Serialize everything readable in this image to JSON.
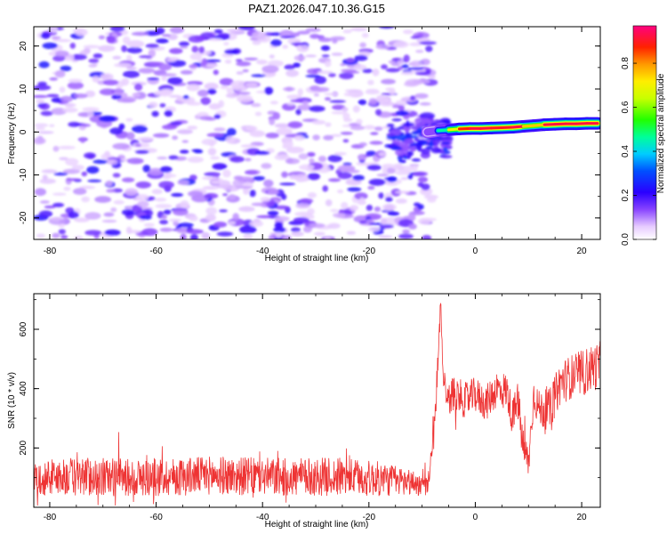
{
  "title": "PAZ1.2026.047.10.36.G15",
  "chart_data": [
    {
      "type": "heatmap",
      "name": "spectrogram",
      "xlabel": "Height of straight line (km)",
      "ylabel": "Frequency (Hz)",
      "xlim": [
        -83,
        23.5
      ],
      "ylim": [
        -25,
        24.5
      ],
      "xticks": [
        -80,
        -60,
        -40,
        -20,
        0,
        20
      ],
      "yticks": [
        -20,
        -10,
        0,
        10,
        20
      ],
      "xtick_labels": [
        "-80",
        "-60",
        "-40",
        "-20",
        "0",
        "20"
      ],
      "ytick_labels": [
        "-20",
        "-10",
        "0",
        "10",
        "20"
      ],
      "noise_band": {
        "x_range": [
          -82,
          -8
        ],
        "amplitude_range": [
          0.05,
          0.25
        ]
      },
      "signal_track": {
        "x": [
          -9,
          -7,
          -5,
          -3,
          -1,
          1,
          3,
          5,
          7,
          9,
          11,
          13,
          15,
          17,
          19,
          21,
          23
        ],
        "frequency": [
          0.0,
          0.3,
          0.5,
          0.7,
          0.8,
          0.8,
          0.9,
          1.0,
          1.1,
          1.3,
          1.5,
          1.7,
          1.8,
          1.9,
          1.9,
          2.0,
          2.0
        ],
        "amplitude": [
          0.2,
          0.35,
          0.6,
          0.85,
          0.95,
          0.95,
          0.95,
          0.9,
          0.95,
          0.95,
          0.6,
          0.95,
          0.95,
          0.95,
          0.95,
          0.95,
          0.95
        ]
      },
      "colorbar": {
        "label": "Normalized spectral amplitude",
        "ticks": [
          0.0,
          0.2,
          0.4,
          0.6,
          0.8
        ],
        "tick_labels": [
          "0.0",
          "0.2",
          "0.4",
          "0.6",
          "0.8"
        ],
        "range": [
          0.0,
          0.97
        ]
      }
    },
    {
      "type": "line",
      "name": "snr",
      "xlabel": "Height of straight line (km)",
      "ylabel": "SNR (10 * v/v)",
      "xlim": [
        -83,
        23.5
      ],
      "ylim": [
        0,
        720
      ],
      "xticks": [
        -80,
        -60,
        -40,
        -20,
        0,
        20
      ],
      "yticks": [
        200,
        400,
        600
      ],
      "xtick_labels": [
        "-80",
        "-60",
        "-40",
        "-20",
        "0",
        "20"
      ],
      "ytick_labels": [
        "200",
        "400",
        "600"
      ],
      "series": [
        {
          "name": "SNR",
          "color": "#ee3333",
          "x": [
            -82,
            -74,
            -66,
            -58,
            -50,
            -42,
            -34,
            -26,
            -18,
            -12,
            -9,
            -8,
            -7,
            -6.5,
            -6,
            -5,
            -4,
            -2,
            0,
            2,
            4,
            6,
            7,
            8,
            9,
            10,
            11,
            12,
            14,
            16,
            18,
            20,
            22,
            23.5
          ],
          "y": [
            100,
            105,
            100,
            102,
            108,
            104,
            100,
            104,
            95,
            85,
            70,
            190,
            480,
            700,
            430,
            360,
            390,
            360,
            380,
            350,
            400,
            390,
            300,
            360,
            200,
            150,
            380,
            330,
            330,
            420,
            440,
            450,
            470,
            480
          ],
          "noise_amplitude": [
            60,
            65,
            65,
            65,
            65,
            65,
            65,
            65,
            60,
            45,
            30,
            50,
            60,
            30,
            50,
            55,
            60,
            60,
            60,
            60,
            65,
            65,
            60,
            70,
            70,
            60,
            60,
            65,
            70,
            75,
            75,
            80,
            80,
            80
          ]
        }
      ]
    }
  ]
}
